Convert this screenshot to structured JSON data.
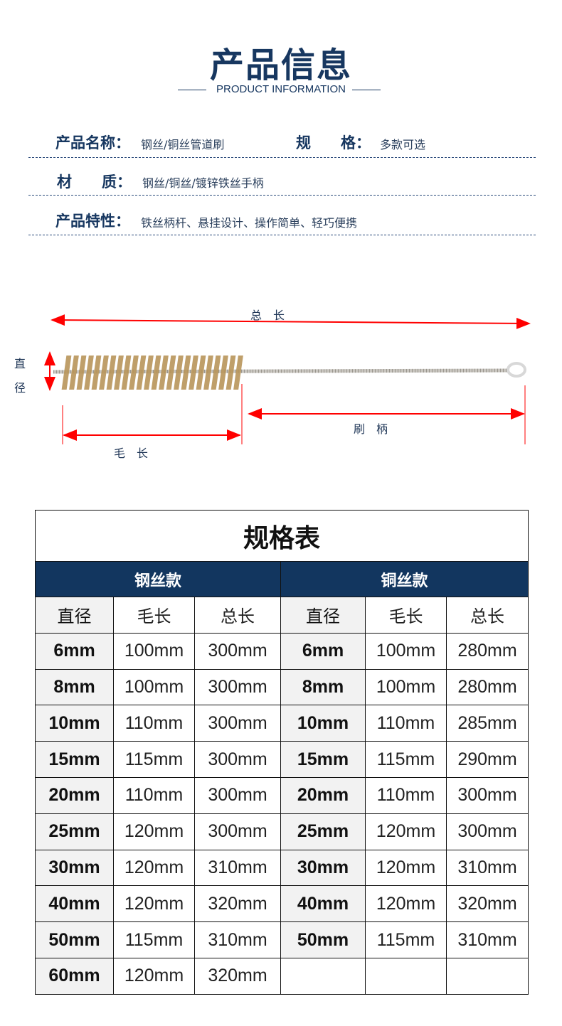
{
  "header": {
    "title": "产品信息",
    "subtitle": "PRODUCT INFORMATION"
  },
  "info": [
    {
      "label": "产品名称：",
      "value": "钢丝/铜丝管道刷"
    },
    {
      "label": "规　　格：",
      "value": "多款可选"
    },
    {
      "label": "材　　质：",
      "value": "钢丝/铜丝/镀锌铁丝手柄"
    },
    {
      "label": "产品特性：",
      "value": "铁丝柄杆、悬挂设计、操作简单、轻巧便携"
    }
  ],
  "diagram": {
    "total_length": "总　长",
    "diameter_1": "直",
    "diameter_2": "径",
    "handle": "刷　柄",
    "bristle_length": "毛　长",
    "arrow_color": "#ff0000",
    "bristle_color": "#b8955a"
  },
  "table": {
    "title": "规格表",
    "groups": [
      "钢丝款",
      "铜丝款"
    ],
    "columns": [
      "直径",
      "毛长",
      "总长",
      "直径",
      "毛长",
      "总长"
    ],
    "header_color": "#12365f",
    "rows": [
      [
        "6mm",
        "100mm",
        "300mm",
        "6mm",
        "100mm",
        "280mm"
      ],
      [
        "8mm",
        "100mm",
        "300mm",
        "8mm",
        "100mm",
        "280mm"
      ],
      [
        "10mm",
        "110mm",
        "300mm",
        "10mm",
        "110mm",
        "285mm"
      ],
      [
        "15mm",
        "115mm",
        "300mm",
        "15mm",
        "115mm",
        "290mm"
      ],
      [
        "20mm",
        "110mm",
        "300mm",
        "20mm",
        "110mm",
        "300mm"
      ],
      [
        "25mm",
        "120mm",
        "300mm",
        "25mm",
        "120mm",
        "300mm"
      ],
      [
        "30mm",
        "120mm",
        "310mm",
        "30mm",
        "120mm",
        "310mm"
      ],
      [
        "40mm",
        "120mm",
        "320mm",
        "40mm",
        "120mm",
        "320mm"
      ],
      [
        "50mm",
        "115mm",
        "310mm",
        "50mm",
        "115mm",
        "310mm"
      ],
      [
        "60mm",
        "120mm",
        "320mm",
        "",
        "",
        ""
      ]
    ]
  }
}
